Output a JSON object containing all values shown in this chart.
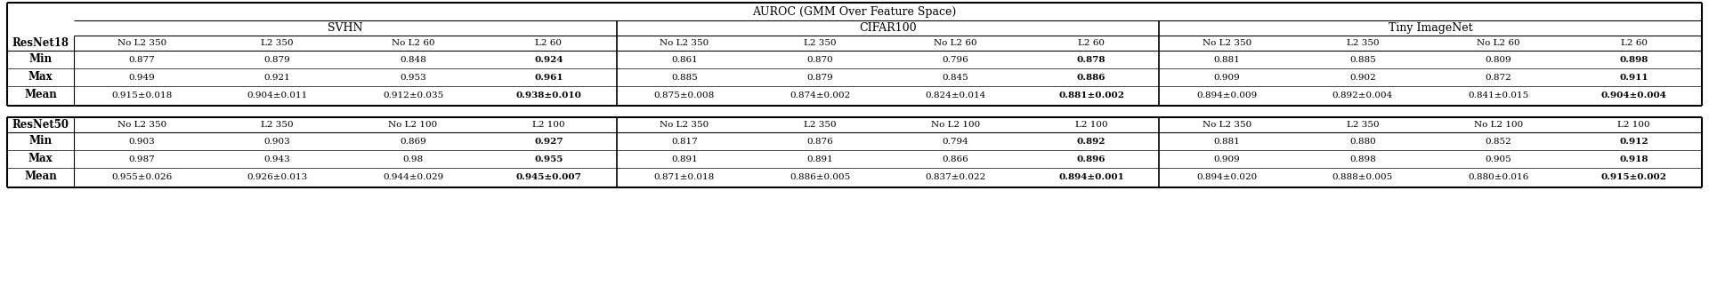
{
  "main_title": "AUROC (GMM Over Feature Space)",
  "section1": {
    "model": "ResNet18",
    "groups": [
      {
        "name": "SVHN",
        "cols": [
          "No L2 350",
          "L2 350",
          "No L2 60",
          "L2 60"
        ],
        "min": [
          "0.877",
          "0.879",
          "0.848",
          "0.924"
        ],
        "max": [
          "0.949",
          "0.921",
          "0.953",
          "0.961"
        ],
        "mean": [
          "0.915±0.018",
          "0.904±0.011",
          "0.912±0.035",
          "0.938±0.010"
        ]
      },
      {
        "name": "CIFAR100",
        "cols": [
          "No L2 350",
          "L2 350",
          "No L2 60",
          "L2 60"
        ],
        "min": [
          "0.861",
          "0.870",
          "0.796",
          "0.878"
        ],
        "max": [
          "0.885",
          "0.879",
          "0.845",
          "0.886"
        ],
        "mean": [
          "0.875±0.008",
          "0.874±0.002",
          "0.824±0.014",
          "0.881±0.002"
        ]
      },
      {
        "name": "Tiny ImageNet",
        "cols": [
          "No L2 350",
          "L2 350",
          "No L2 60",
          "L2 60"
        ],
        "min": [
          "0.881",
          "0.885",
          "0.809",
          "0.898"
        ],
        "max": [
          "0.909",
          "0.902",
          "0.872",
          "0.911"
        ],
        "mean": [
          "0.894±0.009",
          "0.892±0.004",
          "0.841±0.015",
          "0.904±0.004"
        ]
      }
    ]
  },
  "section2": {
    "model": "ResNet50",
    "groups": [
      {
        "name": "SVHN",
        "cols": [
          "No L2 350",
          "L2 350",
          "No L2 100",
          "L2 100"
        ],
        "min": [
          "0.903",
          "0.903",
          "0.869",
          "0.927"
        ],
        "max": [
          "0.987",
          "0.943",
          "0.98",
          "0.955"
        ],
        "mean": [
          "0.955±0.026",
          "0.926±0.013",
          "0.944±0.029",
          "0.945±0.007"
        ]
      },
      {
        "name": "CIFAR100",
        "cols": [
          "No L2 350",
          "L2 350",
          "No L2 100",
          "L2 100"
        ],
        "min": [
          "0.817",
          "0.876",
          "0.794",
          "0.892"
        ],
        "max": [
          "0.891",
          "0.891",
          "0.866",
          "0.896"
        ],
        "mean": [
          "0.871±0.018",
          "0.886±0.005",
          "0.837±0.022",
          "0.894±0.001"
        ]
      },
      {
        "name": "Tiny ImageNet",
        "cols": [
          "No L2 350",
          "L2 350",
          "No L2 100",
          "L2 100"
        ],
        "min": [
          "0.881",
          "0.880",
          "0.852",
          "0.912"
        ],
        "max": [
          "0.909",
          "0.898",
          "0.905",
          "0.918"
        ],
        "mean": [
          "0.894±0.020",
          "0.888±0.005",
          "0.880±0.016",
          "0.915±0.002"
        ]
      }
    ]
  }
}
